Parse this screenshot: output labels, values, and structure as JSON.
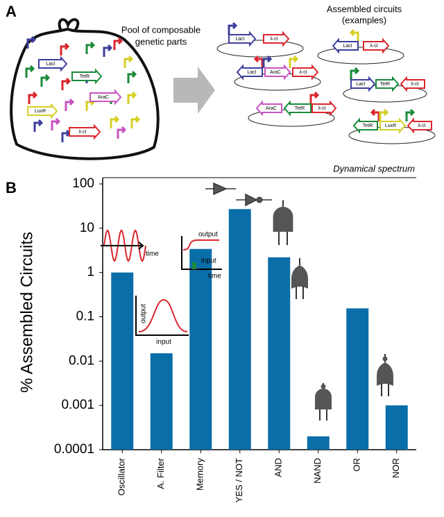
{
  "panel_a": {
    "label": "A",
    "pool_title": [
      "Pool of composable",
      "genetic parts"
    ],
    "assembled_title": [
      "Assembled circuits",
      "(examples)"
    ],
    "pool_parts": [
      "LacI",
      "TetR",
      "AraC",
      "LuxR",
      "λ-cI"
    ],
    "circuits": [
      [
        "LacI",
        "λ-cI"
      ],
      [
        "LacI",
        "λ-cI"
      ],
      [
        "LacI",
        "AraC",
        "λ-cI"
      ],
      [
        "LacI",
        "TetR",
        "λ-cI"
      ],
      [
        "AraC",
        "TetR",
        "λ-cI"
      ],
      [
        "TetR",
        "LuxR",
        "λ-cI"
      ]
    ]
  },
  "chart_data": {
    "type": "bar",
    "panel_label": "B",
    "title": "Dynamical spectrum",
    "y_label": "% Assembled Circuits",
    "categories": [
      "Oscillator",
      "A. Filter",
      "Memory",
      "YES / NOT",
      "AND",
      "NAND",
      "OR",
      "NOR"
    ],
    "values": [
      1,
      0.015,
      3.4,
      27,
      2.2,
      0.0002,
      0.155,
      0.001
    ],
    "color": "#0a6ea8",
    "log_y": true,
    "ylim": [
      0.0001,
      100
    ],
    "yticks": [
      0.0001,
      0.001,
      0.01,
      0.1,
      1,
      10,
      100
    ],
    "annotations": [
      "time",
      "output",
      "input",
      "time",
      "output",
      "input"
    ]
  }
}
